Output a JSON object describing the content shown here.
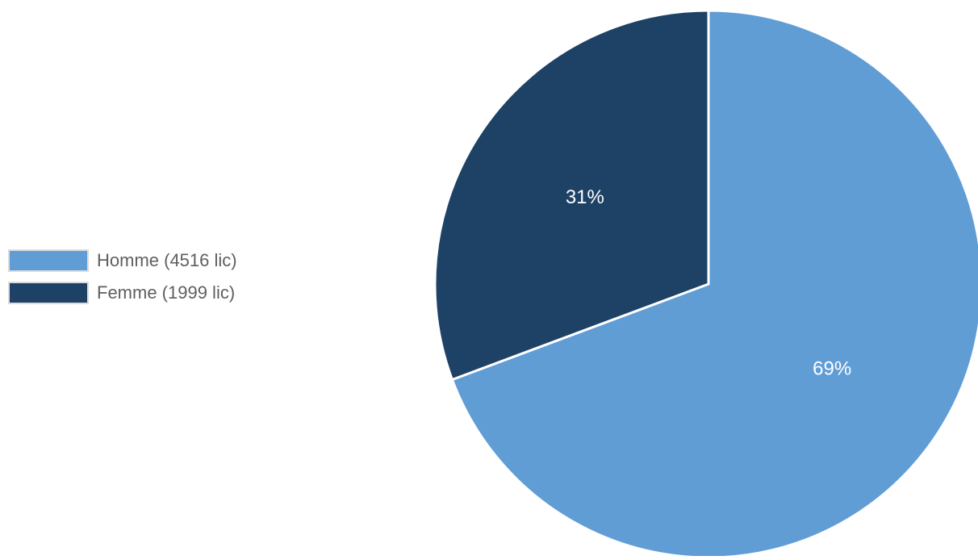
{
  "chart_data": {
    "type": "pie",
    "slices": [
      {
        "name": "Homme (4516 lic)",
        "value": 4516,
        "label": "69%",
        "color": "#619dd5"
      },
      {
        "name": "Femme (1999 lic)",
        "value": 1999,
        "label": "31%",
        "color": "#1e4266"
      }
    ],
    "legend_position": "left"
  }
}
